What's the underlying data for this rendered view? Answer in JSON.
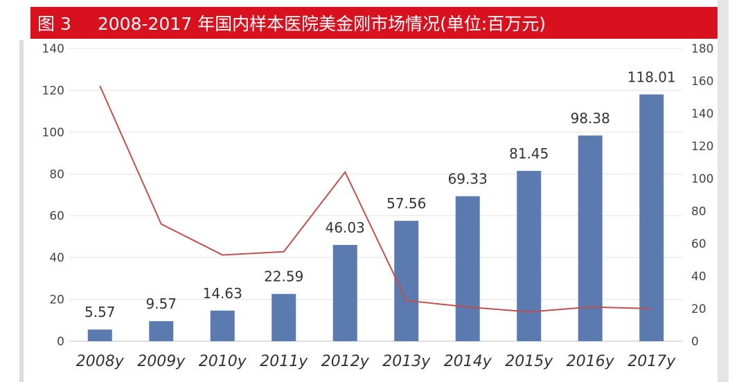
{
  "header": {
    "figure_label": "图 3",
    "title": "2008-2017 年国内样本医院美金刚市场情况(单位:百万元)"
  },
  "chart_data": {
    "type": "bar",
    "categories": [
      "2008y",
      "2009y",
      "2010y",
      "2011y",
      "2012y",
      "2013y",
      "2014y",
      "2015y",
      "2016y",
      "2017y"
    ],
    "series": [
      {
        "type": "bar",
        "axis": "left",
        "values": [
          5.57,
          9.57,
          14.63,
          22.59,
          46.03,
          57.56,
          69.33,
          81.45,
          98.38,
          118.01
        ],
        "data_labels": [
          "5.57",
          "9.57",
          "14.63",
          "22.59",
          "46.03",
          "57.56",
          "69.33",
          "81.45",
          "98.38",
          "118.01"
        ],
        "color": "#5b7bb0"
      },
      {
        "type": "line",
        "axis": "right",
        "values": [
          157,
          72,
          53,
          55,
          104,
          25,
          21,
          18,
          21,
          20
        ],
        "color": "#c0504d"
      }
    ],
    "y_left": {
      "min": 0,
      "max": 140,
      "ticks": [
        0,
        20,
        40,
        60,
        80,
        100,
        120,
        140
      ]
    },
    "y_right": {
      "min": 0,
      "max": 180,
      "ticks": [
        0,
        20,
        40,
        60,
        80,
        100,
        120,
        140,
        160,
        180
      ]
    },
    "grid": "horizontal"
  }
}
